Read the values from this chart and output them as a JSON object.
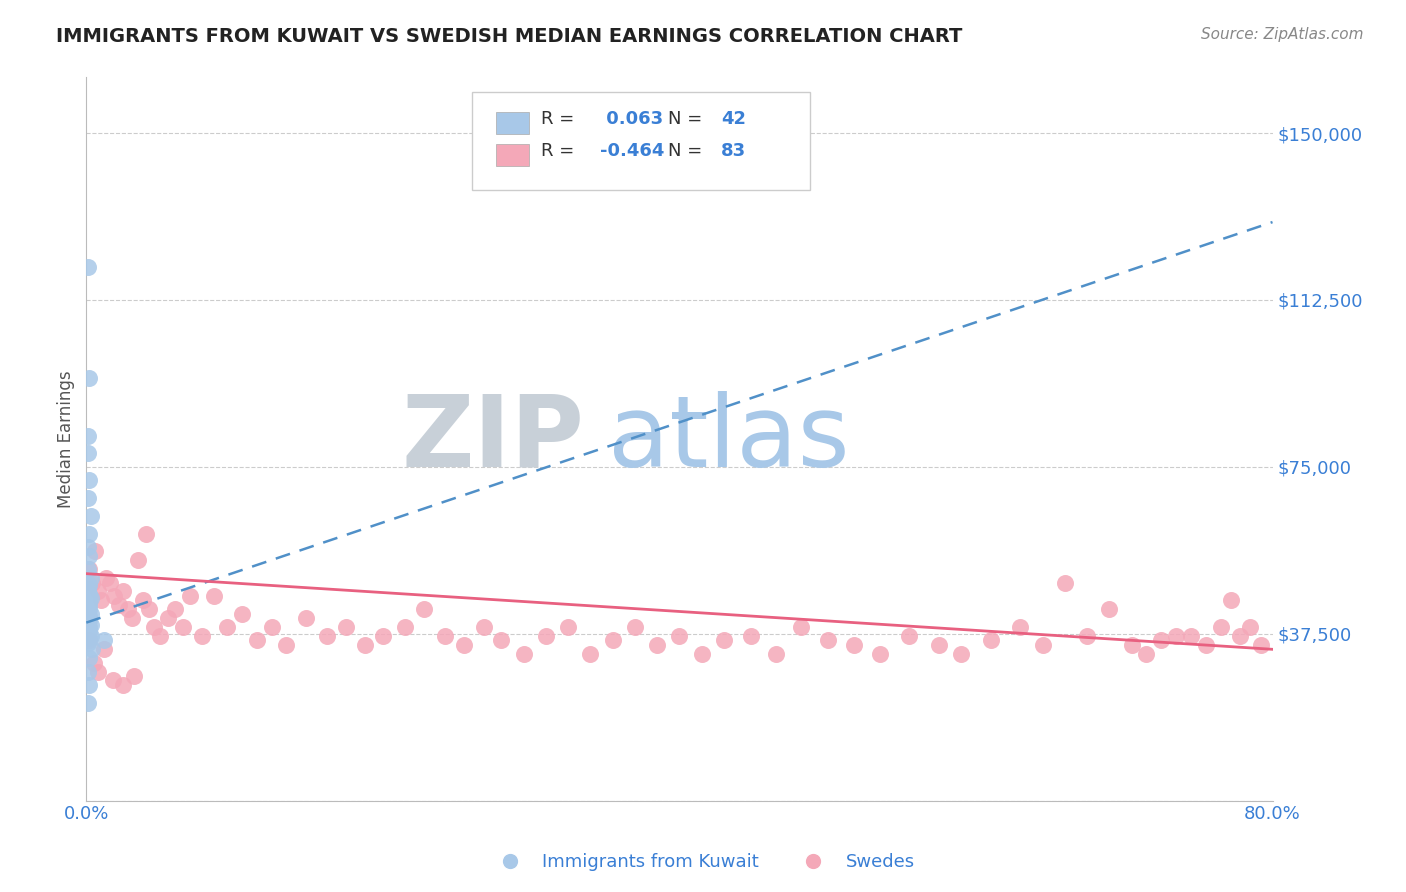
{
  "title": "IMMIGRANTS FROM KUWAIT VS SWEDISH MEDIAN EARNINGS CORRELATION CHART",
  "source": "Source: ZipAtlas.com",
  "ylabel": "Median Earnings",
  "xlim": [
    0.0,
    0.8
  ],
  "ylim": [
    0,
    162500
  ],
  "yticks": [
    0,
    37500,
    75000,
    112500,
    150000
  ],
  "ytick_labels": [
    "",
    "$37,500",
    "$75,000",
    "$112,500",
    "$150,000"
  ],
  "xticks": [
    0.0,
    0.2,
    0.4,
    0.6,
    0.8
  ],
  "xtick_labels": [
    "0.0%",
    "",
    "",
    "",
    "80.0%"
  ],
  "blue_R": "0.063",
  "blue_N": "42",
  "pink_R": "-0.464",
  "pink_N": "83",
  "blue_color": "#a8c8e8",
  "pink_color": "#f4a8b8",
  "blue_line_color": "#5090c8",
  "pink_line_color": "#e86080",
  "grid_color": "#cccccc",
  "title_color": "#222222",
  "axis_label_color": "#555555",
  "tick_color": "#3a7fd5",
  "source_color": "#888888",
  "watermark_ZIP": "ZIP",
  "watermark_atlas": "atlas",
  "watermark_ZIP_color": "#c8d0d8",
  "watermark_atlas_color": "#a8c8e8",
  "blue_trend_x0": 0.0,
  "blue_trend_y0": 40000,
  "blue_trend_x1": 0.8,
  "blue_trend_y1": 130000,
  "pink_trend_x0": 0.0,
  "pink_trend_y0": 51000,
  "pink_trend_x1": 0.8,
  "pink_trend_y1": 34000,
  "blue_x": [
    0.001,
    0.002,
    0.001,
    0.001,
    0.002,
    0.001,
    0.003,
    0.002,
    0.001,
    0.002,
    0.001,
    0.003,
    0.002,
    0.001,
    0.002,
    0.001,
    0.003,
    0.002,
    0.001,
    0.002,
    0.001,
    0.002,
    0.001,
    0.003,
    0.002,
    0.001,
    0.002,
    0.001,
    0.003,
    0.002,
    0.001,
    0.002,
    0.001,
    0.003,
    0.002,
    0.001,
    0.004,
    0.002,
    0.001,
    0.002,
    0.001,
    0.012
  ],
  "blue_y": [
    120000,
    95000,
    82000,
    78000,
    72000,
    68000,
    64000,
    60000,
    57000,
    55000,
    52000,
    50000,
    48500,
    47500,
    46500,
    46000,
    45500,
    45000,
    44500,
    44000,
    43500,
    43000,
    42500,
    42000,
    41500,
    41000,
    40500,
    40000,
    39500,
    39000,
    38500,
    38000,
    37500,
    37000,
    36500,
    35500,
    34000,
    32000,
    29000,
    26000,
    22000,
    36000
  ],
  "pink_x": [
    0.002,
    0.004,
    0.006,
    0.008,
    0.01,
    0.013,
    0.016,
    0.019,
    0.022,
    0.025,
    0.028,
    0.031,
    0.035,
    0.038,
    0.042,
    0.046,
    0.05,
    0.055,
    0.06,
    0.065,
    0.07,
    0.078,
    0.086,
    0.095,
    0.105,
    0.115,
    0.125,
    0.135,
    0.148,
    0.162,
    0.175,
    0.188,
    0.2,
    0.215,
    0.228,
    0.242,
    0.255,
    0.268,
    0.28,
    0.295,
    0.31,
    0.325,
    0.34,
    0.355,
    0.37,
    0.385,
    0.4,
    0.415,
    0.43,
    0.448,
    0.465,
    0.482,
    0.5,
    0.518,
    0.535,
    0.555,
    0.575,
    0.59,
    0.61,
    0.63,
    0.645,
    0.66,
    0.675,
    0.69,
    0.705,
    0.715,
    0.725,
    0.735,
    0.745,
    0.755,
    0.765,
    0.772,
    0.778,
    0.785,
    0.792,
    0.002,
    0.005,
    0.008,
    0.012,
    0.018,
    0.025,
    0.032,
    0.04
  ],
  "pink_y": [
    52000,
    49000,
    56000,
    47000,
    45000,
    50000,
    49000,
    46000,
    44000,
    47000,
    43000,
    41000,
    54000,
    45000,
    43000,
    39000,
    37000,
    41000,
    43000,
    39000,
    46000,
    37000,
    46000,
    39000,
    42000,
    36000,
    39000,
    35000,
    41000,
    37000,
    39000,
    35000,
    37000,
    39000,
    43000,
    37000,
    35000,
    39000,
    36000,
    33000,
    37000,
    39000,
    33000,
    36000,
    39000,
    35000,
    37000,
    33000,
    36000,
    37000,
    33000,
    39000,
    36000,
    35000,
    33000,
    37000,
    35000,
    33000,
    36000,
    39000,
    35000,
    49000,
    37000,
    43000,
    35000,
    33000,
    36000,
    37000,
    37000,
    35000,
    39000,
    45000,
    37000,
    39000,
    35000,
    36000,
    31000,
    29000,
    34000,
    27000,
    26000,
    28000,
    60000
  ]
}
